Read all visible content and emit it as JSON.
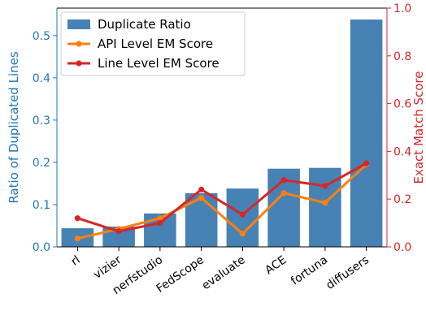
{
  "chart_data": {
    "type": "bar",
    "categories": [
      "rl",
      "vizier",
      "nerfstudio",
      "FedScope",
      "evaluate",
      "ACE",
      "fortuna",
      "diffusers"
    ],
    "series": [
      {
        "name": "Duplicate Ratio",
        "type": "bar",
        "axis": "left",
        "color": "#4682b4",
        "values": [
          0.044,
          0.048,
          0.079,
          0.127,
          0.138,
          0.185,
          0.187,
          0.538
        ]
      },
      {
        "name": "API Level EM Score",
        "type": "line",
        "axis": "right",
        "color": "#ff7f0e",
        "values": [
          0.035,
          0.075,
          0.12,
          0.205,
          0.055,
          0.225,
          0.185,
          0.345
        ]
      },
      {
        "name": "Line Level EM Score",
        "type": "line",
        "axis": "right",
        "color": "#d62728",
        "values": [
          0.12,
          0.065,
          0.1,
          0.24,
          0.135,
          0.28,
          0.255,
          0.35
        ]
      }
    ],
    "ylabel": "Ratio of Duplicated Lines",
    "ylabel_color": "#1f77b4",
    "y2label": "Exact Match Score",
    "y2label_color": "#d62728",
    "ylim": [
      0,
      0.565
    ],
    "y2lim": [
      0,
      1.0
    ],
    "yticks": [
      "0.0",
      "0.1",
      "0.2",
      "0.3",
      "0.4",
      "0.5"
    ],
    "y2ticks": [
      "0.0",
      "0.2",
      "0.4",
      "0.6",
      "0.8",
      "1.0"
    ],
    "legend_position": "top-left",
    "grid": false
  }
}
